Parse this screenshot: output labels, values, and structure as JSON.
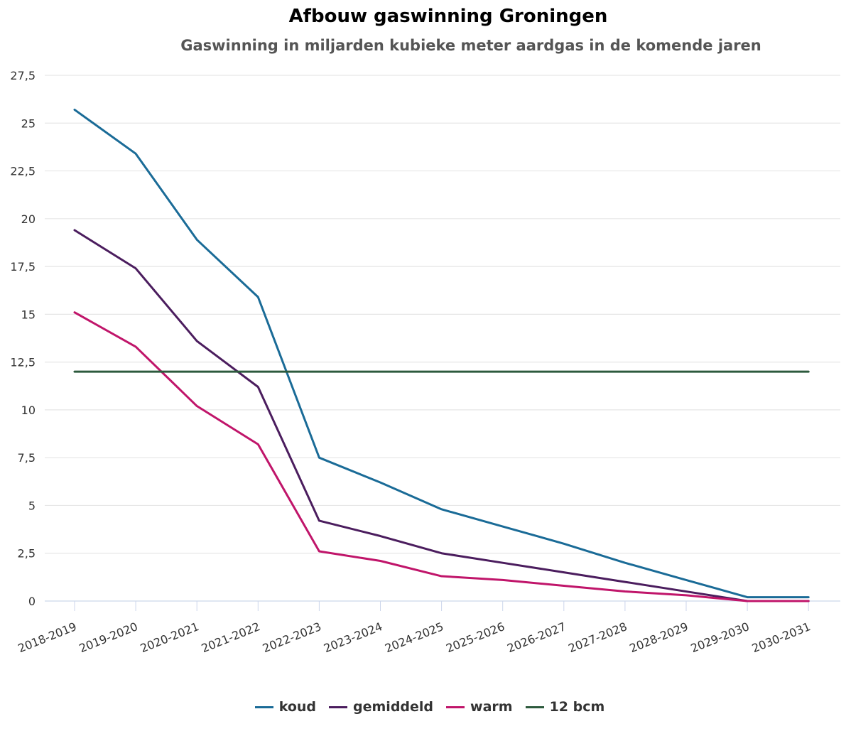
{
  "chart_data": {
    "type": "line",
    "title": "Afbouw gaswinning Groningen",
    "subtitle": "Gaswinning in miljarden kubieke meter aardgas in de komende jaren",
    "xlabel": "",
    "ylabel": "",
    "ylim": [
      0,
      27.5
    ],
    "yticks": [
      "0",
      "2,5",
      "5",
      "7,5",
      "10",
      "12,5",
      "15",
      "17,5",
      "20",
      "22,5",
      "25",
      "27,5"
    ],
    "categories": [
      "2018-2019",
      "2019-2020",
      "2020-2021",
      "2021-2022",
      "2022-2023",
      "2023-2024",
      "2024-2025",
      "2025-2026",
      "2026-2027",
      "2027-2028",
      "2028-2029",
      "2029-2030",
      "2030-2031"
    ],
    "grid": true,
    "legend_position": "bottom-center",
    "series": [
      {
        "name": "koud",
        "color": "#1a6b97",
        "values": [
          25.7,
          23.4,
          18.9,
          15.9,
          7.5,
          6.2,
          4.8,
          3.9,
          3.0,
          2.0,
          1.1,
          0.2,
          0.2
        ]
      },
      {
        "name": "gemiddeld",
        "color": "#4b1d5e",
        "values": [
          19.4,
          17.4,
          13.6,
          11.2,
          4.2,
          3.4,
          2.5,
          2.0,
          1.5,
          1.0,
          0.5,
          0.0,
          0.0
        ]
      },
      {
        "name": "warm",
        "color": "#c0156a",
        "values": [
          15.1,
          13.3,
          10.2,
          8.2,
          2.6,
          2.1,
          1.3,
          1.1,
          0.8,
          0.5,
          0.3,
          0.0,
          0.0
        ]
      },
      {
        "name": "12 bcm",
        "color": "#2d5a3d",
        "values": [
          12,
          12,
          12,
          12,
          12,
          12,
          12,
          12,
          12,
          12,
          12,
          12,
          12
        ]
      }
    ]
  }
}
